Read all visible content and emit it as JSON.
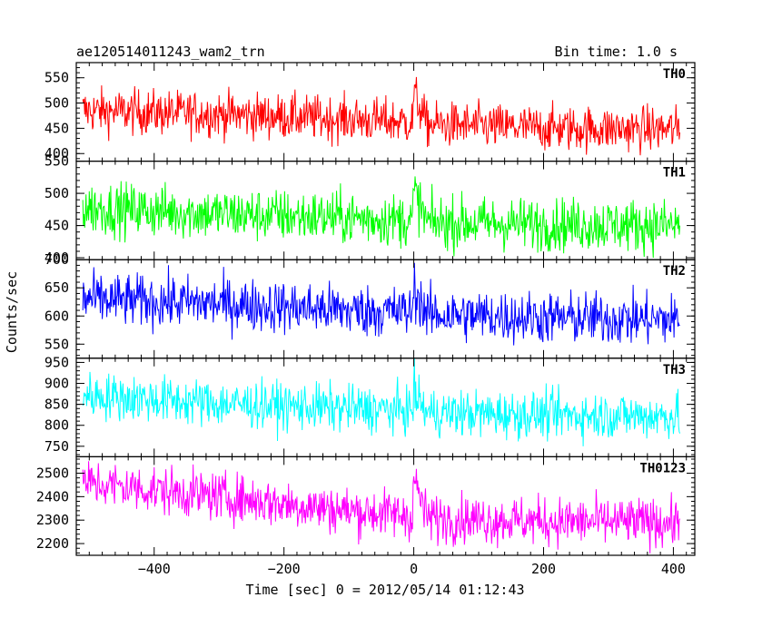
{
  "header": {
    "title": "ae120514011243_wam2_trn",
    "bin_time": "Bin time: 1.0 s"
  },
  "chart_data": {
    "type": "line",
    "xlabel": "Time [sec] 0 = 2012/05/14 01:12:43",
    "ylabel": "Counts/sec",
    "xlim": [
      -520,
      433
    ],
    "x_range": [
      -510,
      410
    ],
    "bin_size": 1.0,
    "x_ticks": [
      -400,
      -200,
      0,
      200,
      400
    ],
    "x_tick_labels": [
      "−400",
      "−200",
      "0",
      "200",
      "400"
    ],
    "panels": [
      {
        "name": "TH0",
        "color": "#ff0000",
        "ylim": [
          385,
          580
        ],
        "y_ticks": [
          400,
          450,
          500,
          550
        ],
        "y_tick_labels": [
          "400",
          "450",
          "500",
          "550"
        ],
        "trend": [
          [
            -510,
            485
          ],
          [
            -300,
            478
          ],
          [
            -100,
            468
          ],
          [
            -2,
            462
          ],
          [
            0,
            520
          ],
          [
            20,
            458
          ],
          [
            200,
            450
          ],
          [
            410,
            448
          ]
        ],
        "noise": 24
      },
      {
        "name": "TH1",
        "color": "#00ff00",
        "ylim": [
          397,
          550
        ],
        "y_ticks": [
          400,
          450,
          500,
          550
        ],
        "y_tick_labels": [
          "400",
          "450",
          "500",
          "550"
        ],
        "trend": [
          [
            -510,
            478
          ],
          [
            -300,
            468
          ],
          [
            -100,
            462
          ],
          [
            -2,
            458
          ],
          [
            0,
            505
          ],
          [
            20,
            455
          ],
          [
            200,
            452
          ],
          [
            410,
            450
          ]
        ],
        "noise": 22
      },
      {
        "name": "TH2",
        "color": "#0000ff",
        "ylim": [
          525,
          700
        ],
        "y_ticks": [
          550,
          600,
          650,
          700
        ],
        "y_tick_labels": [
          "550",
          "600",
          "650",
          "700"
        ],
        "trend": [
          [
            -510,
            630
          ],
          [
            -300,
            622
          ],
          [
            -100,
            610
          ],
          [
            -2,
            607
          ],
          [
            0,
            650
          ],
          [
            20,
            603
          ],
          [
            200,
            597
          ],
          [
            410,
            593
          ]
        ],
        "noise": 25
      },
      {
        "name": "TH3",
        "color": "#00ffff",
        "ylim": [
          725,
          960
        ],
        "y_ticks": [
          750,
          800,
          850,
          900,
          950
        ],
        "y_tick_labels": [
          "750",
          "800",
          "850",
          "900",
          "950"
        ],
        "trend": [
          [
            -510,
            872
          ],
          [
            -300,
            852
          ],
          [
            -100,
            840
          ],
          [
            -2,
            835
          ],
          [
            0,
            880
          ],
          [
            20,
            830
          ],
          [
            200,
            825
          ],
          [
            410,
            822
          ]
        ],
        "noise": 30
      },
      {
        "name": "TH0123",
        "color": "#ff00ff",
        "ylim": [
          2150,
          2570
        ],
        "y_ticks": [
          2200,
          2300,
          2400,
          2500
        ],
        "y_tick_labels": [
          "2200",
          "2300",
          "2400",
          "2500"
        ],
        "trend": [
          [
            -510,
            2460
          ],
          [
            -300,
            2400
          ],
          [
            -100,
            2340
          ],
          [
            -2,
            2320
          ],
          [
            0,
            2480
          ],
          [
            20,
            2310
          ],
          [
            200,
            2295
          ],
          [
            410,
            2290
          ]
        ],
        "noise": 55
      }
    ]
  }
}
